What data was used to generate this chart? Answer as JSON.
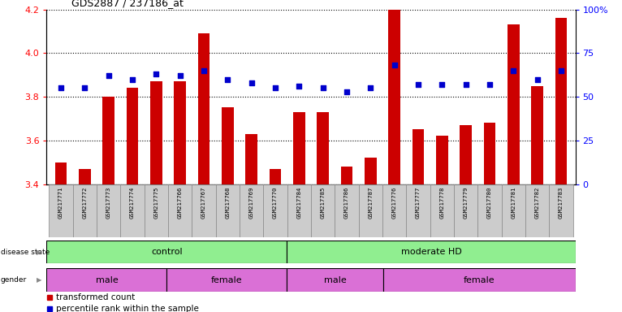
{
  "title": "GDS2887 / 237186_at",
  "samples": [
    "GSM217771",
    "GSM217772",
    "GSM217773",
    "GSM217774",
    "GSM217775",
    "GSM217766",
    "GSM217767",
    "GSM217768",
    "GSM217769",
    "GSM217770",
    "GSM217784",
    "GSM217785",
    "GSM217786",
    "GSM217787",
    "GSM217776",
    "GSM217777",
    "GSM217778",
    "GSM217779",
    "GSM217780",
    "GSM217781",
    "GSM217782",
    "GSM217783"
  ],
  "bar_values": [
    3.5,
    3.47,
    3.8,
    3.84,
    3.87,
    3.87,
    4.09,
    3.75,
    3.63,
    3.47,
    3.73,
    3.73,
    3.48,
    3.52,
    4.2,
    3.65,
    3.62,
    3.67,
    3.68,
    4.13,
    3.85,
    4.16
  ],
  "percentile_values": [
    55,
    55,
    62,
    60,
    63,
    62,
    65,
    60,
    58,
    55,
    56,
    55,
    53,
    55,
    68,
    57,
    57,
    57,
    57,
    65,
    60,
    65
  ],
  "ylim_left": [
    3.4,
    4.2
  ],
  "ylim_right": [
    0,
    100
  ],
  "bar_color": "#cc0000",
  "dot_color": "#0000cc",
  "background_color": "#ffffff",
  "plot_bg_color": "#ffffff",
  "left_yticks": [
    3.4,
    3.6,
    3.8,
    4.0,
    4.2
  ],
  "right_yticks": [
    0,
    25,
    50,
    75,
    100
  ],
  "right_yticklabels": [
    "0",
    "25",
    "50",
    "75",
    "100%"
  ],
  "bar_width": 0.5,
  "disease_state_groups": [
    {
      "label": "control",
      "start": 0,
      "end": 10,
      "color": "#90ee90"
    },
    {
      "label": "moderate HD",
      "start": 10,
      "end": 22,
      "color": "#90ee90"
    }
  ],
  "gender_groups": [
    {
      "label": "male",
      "start": 0,
      "end": 5,
      "color": "#da70d6"
    },
    {
      "label": "female",
      "start": 5,
      "end": 10,
      "color": "#da70d6"
    },
    {
      "label": "male",
      "start": 10,
      "end": 14,
      "color": "#da70d6"
    },
    {
      "label": "female",
      "start": 14,
      "end": 22,
      "color": "#da70d6"
    }
  ],
  "legend_items": [
    {
      "label": "transformed count",
      "color": "#cc0000"
    },
    {
      "label": "percentile rank within the sample",
      "color": "#0000cc"
    }
  ],
  "fig_width": 7.66,
  "fig_height": 3.84,
  "dpi": 100
}
